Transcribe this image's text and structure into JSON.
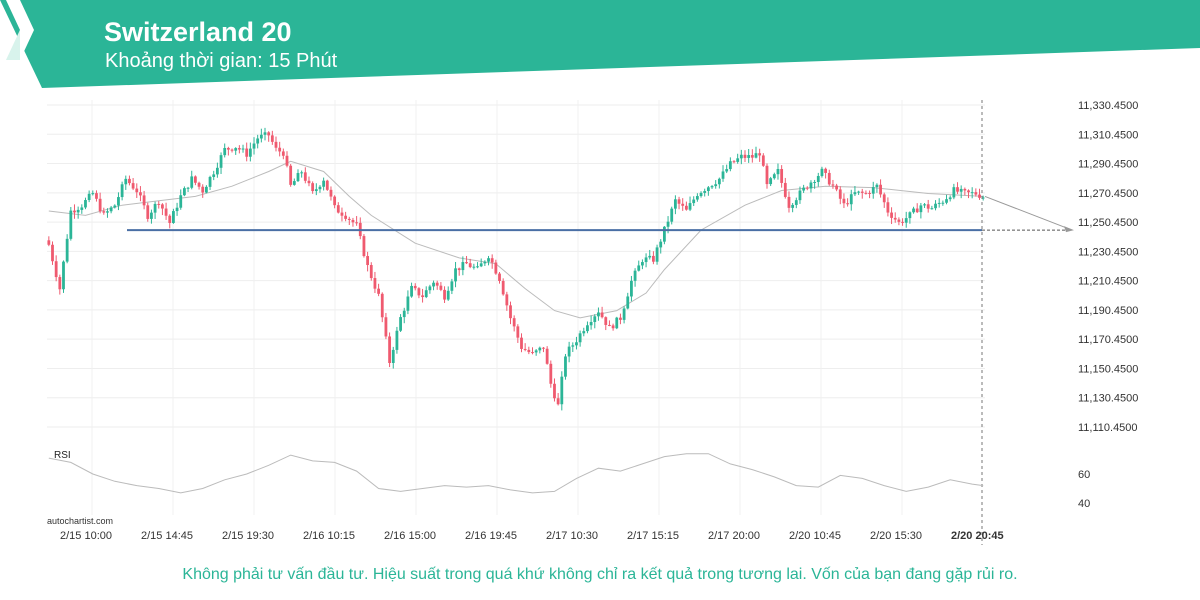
{
  "header": {
    "title": "Switzerland 20",
    "subtitle": "Khoảng thời gian: 15 Phút",
    "brand_color": "#2bb597",
    "logo_icon": "autochartist-logo-icon"
  },
  "watermark": "autochartist.com",
  "disclaimer": "Không phải tư vấn đầu tư. Hiệu suất trong quá khứ không chỉ ra kết quả trong tương lai. Vốn của bạn đang gặp rủi ro.",
  "chart_data": {
    "type": "candlestick",
    "title": "Switzerland 20",
    "price_axis": {
      "ticks": [
        11330.45,
        11310.45,
        11290.45,
        11270.45,
        11250.45,
        11230.45,
        11210.45,
        11190.45,
        11170.45,
        11150.45,
        11130.45,
        11110.45
      ],
      "tick_labels": [
        "11,330.4500",
        "11,310.4500",
        "11,290.4500",
        "11,270.4500",
        "11,250.4500",
        "11,230.4500",
        "11,210.4500",
        "11,190.4500",
        "11,170.4500",
        "11,150.4500",
        "11,130.4500",
        "11,110.4500"
      ],
      "range": [
        11105,
        11335
      ],
      "position": "right"
    },
    "time_axis": {
      "tick_labels": [
        "2/15 10:00",
        "2/15 14:45",
        "2/15 19:30",
        "2/16 10:15",
        "2/16 15:00",
        "2/16 19:45",
        "2/17 10:30",
        "2/17 15:15",
        "2/17 20:00",
        "2/20 10:45",
        "2/20 15:30",
        "2/20 20:45"
      ],
      "current_label": "2/20 20:45"
    },
    "grid": true,
    "colors": {
      "up": "#2bb597",
      "down": "#ef5a6f",
      "support": "#4a6fa5",
      "moving_average": "#bbbbbb",
      "rsi": "#bbbbbb"
    },
    "support_level": 11245,
    "projected_price": 11245,
    "close_path": [
      [
        0,
        11235
      ],
      [
        3,
        11205
      ],
      [
        6,
        11258
      ],
      [
        9,
        11262
      ],
      [
        12,
        11270
      ],
      [
        15,
        11255
      ],
      [
        18,
        11262
      ],
      [
        21,
        11280
      ],
      [
        24,
        11272
      ],
      [
        27,
        11255
      ],
      [
        30,
        11265
      ],
      [
        33,
        11250
      ],
      [
        36,
        11268
      ],
      [
        39,
        11280
      ],
      [
        42,
        11272
      ],
      [
        45,
        11285
      ],
      [
        48,
        11300
      ],
      [
        51,
        11302
      ],
      [
        54,
        11297
      ],
      [
        57,
        11308
      ],
      [
        60,
        11310
      ],
      [
        62,
        11300
      ],
      [
        64,
        11298
      ],
      [
        66,
        11275
      ],
      [
        69,
        11285
      ],
      [
        72,
        11270
      ],
      [
        75,
        11280
      ],
      [
        78,
        11260
      ],
      [
        81,
        11255
      ],
      [
        84,
        11248
      ],
      [
        87,
        11220
      ],
      [
        90,
        11200
      ],
      [
        93,
        11155
      ],
      [
        96,
        11185
      ],
      [
        99,
        11205
      ],
      [
        102,
        11200
      ],
      [
        105,
        11210
      ],
      [
        108,
        11200
      ],
      [
        111,
        11218
      ],
      [
        114,
        11222
      ],
      [
        117,
        11218
      ],
      [
        120,
        11228
      ],
      [
        123,
        11212
      ],
      [
        126,
        11185
      ],
      [
        129,
        11165
      ],
      [
        132,
        11160
      ],
      [
        135,
        11165
      ],
      [
        137,
        11140
      ],
      [
        139,
        11125
      ],
      [
        141,
        11160
      ],
      [
        144,
        11170
      ],
      [
        147,
        11182
      ],
      [
        150,
        11190
      ],
      [
        153,
        11178
      ],
      [
        156,
        11185
      ],
      [
        159,
        11210
      ],
      [
        162,
        11225
      ],
      [
        165,
        11225
      ],
      [
        168,
        11245
      ],
      [
        171,
        11265
      ],
      [
        174,
        11258
      ],
      [
        177,
        11270
      ],
      [
        180,
        11275
      ],
      [
        183,
        11280
      ],
      [
        186,
        11290
      ],
      [
        189,
        11295
      ],
      [
        192,
        11295
      ],
      [
        194,
        11298
      ],
      [
        196,
        11275
      ],
      [
        199,
        11285
      ],
      [
        202,
        11262
      ],
      [
        205,
        11270
      ],
      [
        208,
        11278
      ],
      [
        211,
        11285
      ],
      [
        214,
        11275
      ],
      [
        217,
        11262
      ],
      [
        220,
        11270
      ],
      [
        223,
        11270
      ],
      [
        226,
        11275
      ],
      [
        229,
        11258
      ],
      [
        232,
        11250
      ],
      [
        235,
        11255
      ],
      [
        238,
        11262
      ],
      [
        241,
        11260
      ],
      [
        244,
        11265
      ],
      [
        247,
        11272
      ],
      [
        250,
        11270
      ],
      [
        253,
        11270
      ],
      [
        255,
        11268
      ]
    ],
    "moving_average_path": [
      [
        0,
        11258
      ],
      [
        10,
        11255
      ],
      [
        20,
        11262
      ],
      [
        30,
        11265
      ],
      [
        40,
        11268
      ],
      [
        50,
        11275
      ],
      [
        60,
        11285
      ],
      [
        66,
        11292
      ],
      [
        75,
        11285
      ],
      [
        82,
        11268
      ],
      [
        88,
        11255
      ],
      [
        100,
        11236
      ],
      [
        112,
        11226
      ],
      [
        122,
        11222
      ],
      [
        130,
        11205
      ],
      [
        138,
        11190
      ],
      [
        145,
        11185
      ],
      [
        155,
        11190
      ],
      [
        163,
        11202
      ],
      [
        168,
        11218
      ],
      [
        178,
        11245
      ],
      [
        190,
        11262
      ],
      [
        200,
        11272
      ],
      [
        212,
        11275
      ],
      [
        225,
        11274
      ],
      [
        240,
        11270
      ],
      [
        255,
        11268
      ]
    ],
    "rsi": {
      "label": "RSI",
      "tick_labels": [
        "60",
        "40"
      ],
      "range": [
        35,
        85
      ],
      "path": [
        [
          0,
          71
        ],
        [
          6,
          68
        ],
        [
          12,
          60
        ],
        [
          18,
          55
        ],
        [
          24,
          52
        ],
        [
          30,
          50
        ],
        [
          36,
          47
        ],
        [
          42,
          50
        ],
        [
          48,
          56
        ],
        [
          54,
          60
        ],
        [
          60,
          66
        ],
        [
          66,
          73
        ],
        [
          72,
          69
        ],
        [
          78,
          68
        ],
        [
          84,
          62
        ],
        [
          90,
          50
        ],
        [
          96,
          48
        ],
        [
          102,
          50
        ],
        [
          108,
          52
        ],
        [
          114,
          51
        ],
        [
          120,
          52
        ],
        [
          126,
          49
        ],
        [
          132,
          47
        ],
        [
          138,
          48
        ],
        [
          144,
          57
        ],
        [
          150,
          64
        ],
        [
          156,
          62
        ],
        [
          162,
          67
        ],
        [
          168,
          72
        ],
        [
          174,
          74
        ],
        [
          180,
          74
        ],
        [
          186,
          67
        ],
        [
          192,
          63
        ],
        [
          198,
          58
        ],
        [
          204,
          52
        ],
        [
          210,
          51
        ],
        [
          216,
          59
        ],
        [
          222,
          57
        ],
        [
          228,
          52
        ],
        [
          234,
          48
        ],
        [
          240,
          51
        ],
        [
          246,
          56
        ],
        [
          252,
          53
        ],
        [
          255,
          52
        ]
      ]
    }
  }
}
